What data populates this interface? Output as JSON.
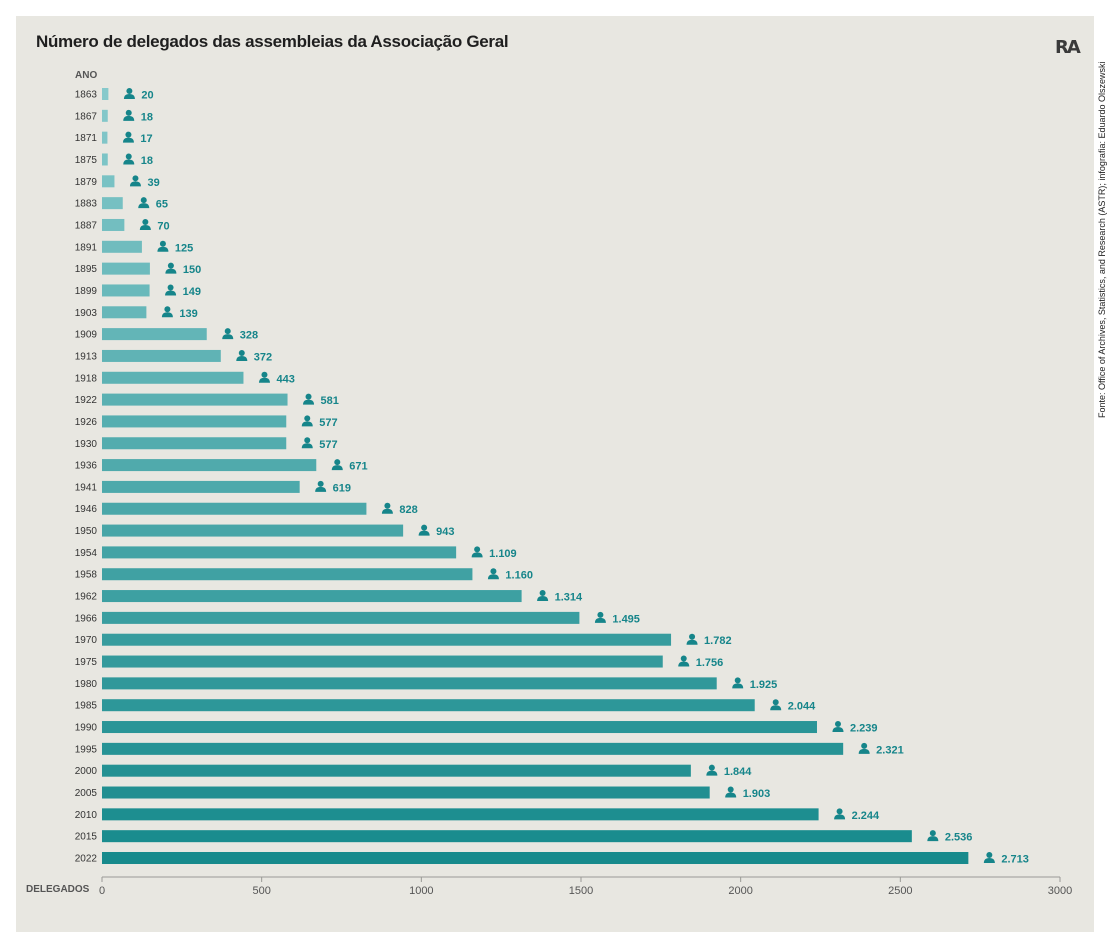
{
  "header": {
    "title": "Número de delegados das assembleias da Associação Geral",
    "logo": "RA",
    "source": "Fonte: Office of Archives, Statistics, and Research (ASTR); infografia: Eduardo Olszewski"
  },
  "colors": {
    "background": "#e8e7e1",
    "bar_light": "#86c9cb",
    "bar_dark": "#178a8c",
    "label": "#16858a",
    "axis_text": "#555555"
  },
  "chart_data": {
    "type": "bar",
    "orientation": "horizontal",
    "title": "Número de delegados das assembleias da Associação Geral",
    "ylabel": "ANO",
    "xlabel": "DELEGADOS",
    "categories": [
      "1863",
      "1867",
      "1871",
      "1875",
      "1879",
      "1883",
      "1887",
      "1891",
      "1895",
      "1899",
      "1903",
      "1909",
      "1913",
      "1918",
      "1922",
      "1926",
      "1930",
      "1936",
      "1941",
      "1946",
      "1950",
      "1954",
      "1958",
      "1962",
      "1966",
      "1970",
      "1975",
      "1980",
      "1985",
      "1990",
      "1995",
      "2000",
      "2005",
      "2010",
      "2015",
      "2022"
    ],
    "values": [
      20,
      18,
      17,
      18,
      39,
      65,
      70,
      125,
      150,
      149,
      139,
      328,
      372,
      443,
      581,
      577,
      577,
      671,
      619,
      828,
      943,
      1109,
      1160,
      1314,
      1495,
      1782,
      1756,
      1925,
      2044,
      2239,
      2321,
      1844,
      1903,
      2244,
      2536,
      2713
    ],
    "value_labels": [
      "20",
      "18",
      "17",
      "18",
      "39",
      "65",
      "70",
      "125",
      "150",
      "149",
      "139",
      "328",
      "372",
      "443",
      "581",
      "577",
      "577",
      "671",
      "619",
      "828",
      "943",
      "1.109",
      "1.160",
      "1.314",
      "1.495",
      "1.782",
      "1.756",
      "1.925",
      "2.044",
      "2.239",
      "2.321",
      "1.844",
      "1.903",
      "2.244",
      "2.536",
      "2.713"
    ],
    "xlim": [
      0,
      3000
    ],
    "xticks": [
      "0",
      "500",
      "1000",
      "1500",
      "2000",
      "2500",
      "3000"
    ],
    "xtick_values": [
      0,
      500,
      1000,
      1500,
      2000,
      2500,
      3000
    ],
    "icon": "person-icon",
    "grid": false,
    "legend": "none"
  }
}
